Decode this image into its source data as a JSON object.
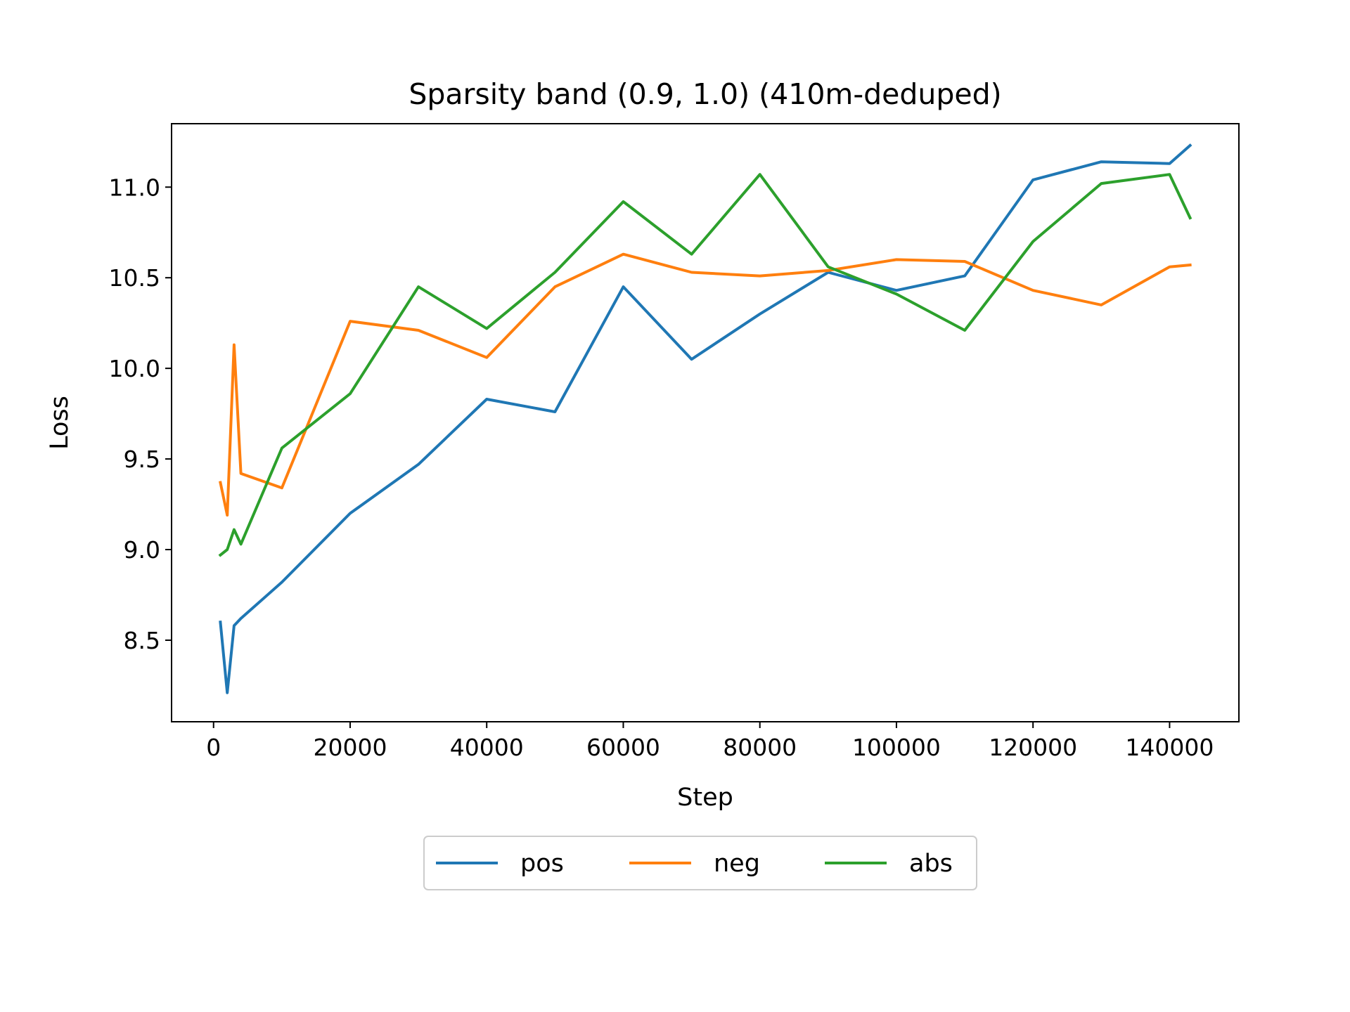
{
  "chart_data": {
    "type": "line",
    "title": "Sparsity band (0.9, 1.0) (410m-deduped)",
    "xlabel": "Step",
    "ylabel": "Loss",
    "xlim": [
      -6150,
      150150
    ],
    "ylim": [
      8.05,
      11.35
    ],
    "xticks": [
      0,
      20000,
      40000,
      60000,
      80000,
      100000,
      120000,
      140000
    ],
    "xtick_labels": [
      "0",
      "20000",
      "40000",
      "60000",
      "80000",
      "100000",
      "120000",
      "140000"
    ],
    "yticks": [
      8.5,
      9.0,
      9.5,
      10.0,
      10.5,
      11.0
    ],
    "ytick_labels": [
      "8.5",
      "9.0",
      "9.5",
      "10.0",
      "10.5",
      "11.0"
    ],
    "grid": false,
    "legend": {
      "placement": "below",
      "columns": 3
    },
    "x": [
      1000,
      2000,
      3000,
      4000,
      10000,
      20000,
      30000,
      40000,
      50000,
      60000,
      70000,
      80000,
      90000,
      100000,
      110000,
      120000,
      130000,
      140000,
      143000
    ],
    "series": [
      {
        "name": "pos",
        "color": "#1f77b4",
        "values": [
          8.6,
          8.21,
          8.58,
          8.62,
          8.82,
          9.2,
          9.47,
          9.83,
          9.76,
          10.45,
          10.05,
          10.3,
          10.53,
          10.43,
          10.51,
          11.04,
          11.14,
          11.13,
          11.23
        ]
      },
      {
        "name": "neg",
        "color": "#ff7f0e",
        "values": [
          9.37,
          9.19,
          10.13,
          9.42,
          9.34,
          10.26,
          10.21,
          10.06,
          10.45,
          10.63,
          10.53,
          10.51,
          10.54,
          10.6,
          10.59,
          10.43,
          10.35,
          10.56,
          10.57
        ]
      },
      {
        "name": "abs",
        "color": "#2ca02c",
        "values": [
          8.97,
          9.0,
          9.11,
          9.03,
          9.56,
          9.86,
          10.45,
          10.22,
          10.53,
          10.92,
          10.63,
          11.07,
          10.56,
          10.41,
          10.21,
          10.7,
          11.02,
          11.07,
          10.83
        ]
      }
    ]
  }
}
